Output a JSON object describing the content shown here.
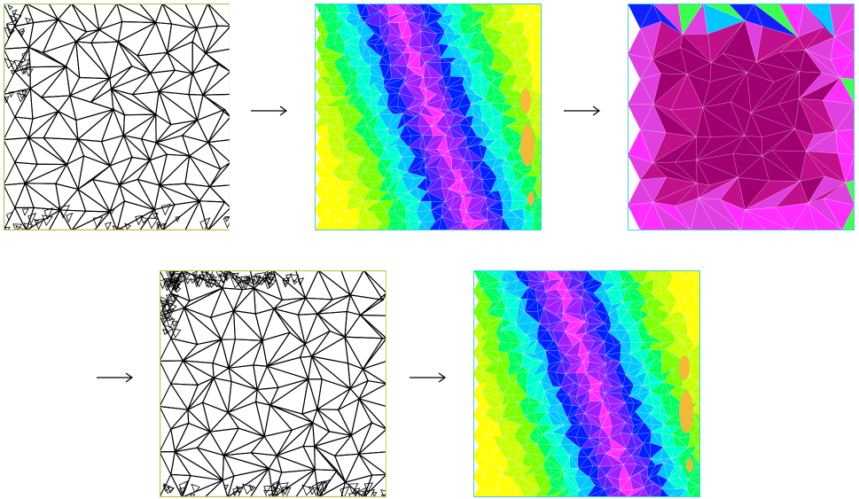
{
  "panels": [
    {
      "id": "mesh-initial",
      "kind": "mesh",
      "seed": 11,
      "refine": "none"
    },
    {
      "id": "solution-1",
      "kind": "field",
      "field": "bands",
      "seed": 21
    },
    {
      "id": "error-indicator",
      "kind": "field",
      "field": "error",
      "seed": 31
    },
    {
      "id": "mesh-adapted",
      "kind": "mesh",
      "seed": 41,
      "refine": "top-left"
    },
    {
      "id": "solution-2",
      "kind": "field",
      "field": "bands-refined",
      "seed": 51
    }
  ],
  "palette": {
    "bands": [
      "#ffff00",
      "#c8ff00",
      "#7cff00",
      "#00ff60",
      "#00ffd0",
      "#00c8ff",
      "#0020ff",
      "#5a20ff",
      "#a020ff",
      "#ff30ff"
    ],
    "error": [
      "#1020ff",
      "#00c8ff",
      "#3cff50",
      "#ff30ff",
      "#e040e0",
      "#c0108c",
      "#a00070"
    ],
    "mesh_stroke": "#000000",
    "frame_colors": [
      "#9ad04a",
      "#d7d760"
    ]
  },
  "arrows": [
    {
      "id": "arrow-1",
      "symbol": "→"
    },
    {
      "id": "arrow-2",
      "symbol": "→"
    },
    {
      "id": "arrow-3",
      "symbol": "→"
    },
    {
      "id": "arrow-4",
      "symbol": "→"
    }
  ]
}
